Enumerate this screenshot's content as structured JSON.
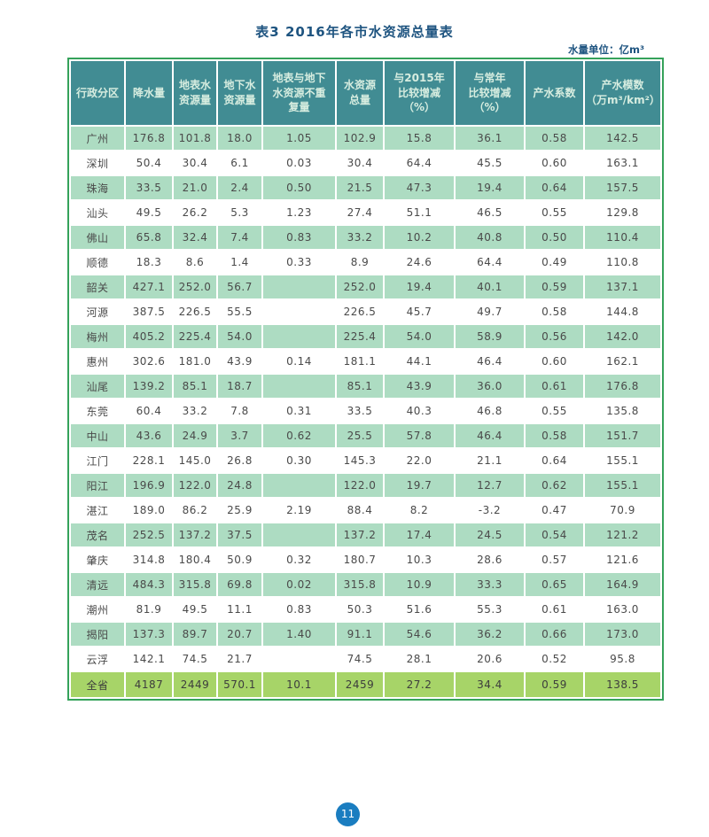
{
  "page": {
    "title": "表3  2016年各市水资源总量表",
    "unit_note": "水量单位：亿m³",
    "page_number": "11"
  },
  "colors": {
    "header_bg": "#418c93",
    "row_green": "#addcc2",
    "row_white": "#ffffff",
    "total_row_bg": "#a7d468",
    "table_border": "#35a25a",
    "title_color": "#1e5480",
    "badge_bg": "#1a7dc0"
  },
  "table": {
    "headers": [
      "行政分区",
      "降水量",
      "地表水\n资源量",
      "地下水\n资源量",
      "地表与地下\n水资源不重\n复量",
      "水资源\n总量",
      "与2015年\n比较增减\n（%）",
      "与常年\n比较增减\n（%）",
      "产水系数",
      "产水模数\n（万m³/km²）"
    ],
    "rows": [
      [
        "广州",
        "176.8",
        "101.8",
        "18.0",
        "1.05",
        "102.9",
        "15.8",
        "36.1",
        "0.58",
        "142.5"
      ],
      [
        "深圳",
        "50.4",
        "30.4",
        "6.1",
        "0.03",
        "30.4",
        "64.4",
        "45.5",
        "0.60",
        "163.1"
      ],
      [
        "珠海",
        "33.5",
        "21.0",
        "2.4",
        "0.50",
        "21.5",
        "47.3",
        "19.4",
        "0.64",
        "157.5"
      ],
      [
        "汕头",
        "49.5",
        "26.2",
        "5.3",
        "1.23",
        "27.4",
        "51.1",
        "46.5",
        "0.55",
        "129.8"
      ],
      [
        "佛山",
        "65.8",
        "32.4",
        "7.4",
        "0.83",
        "33.2",
        "10.2",
        "40.8",
        "0.50",
        "110.4"
      ],
      [
        "顺德",
        "18.3",
        "8.6",
        "1.4",
        "0.33",
        "8.9",
        "24.6",
        "64.4",
        "0.49",
        "110.8"
      ],
      [
        "韶关",
        "427.1",
        "252.0",
        "56.7",
        "",
        "252.0",
        "19.4",
        "40.1",
        "0.59",
        "137.1"
      ],
      [
        "河源",
        "387.5",
        "226.5",
        "55.5",
        "",
        "226.5",
        "45.7",
        "49.7",
        "0.58",
        "144.8"
      ],
      [
        "梅州",
        "405.2",
        "225.4",
        "54.0",
        "",
        "225.4",
        "54.0",
        "58.9",
        "0.56",
        "142.0"
      ],
      [
        "惠州",
        "302.6",
        "181.0",
        "43.9",
        "0.14",
        "181.1",
        "44.1",
        "46.4",
        "0.60",
        "162.1"
      ],
      [
        "汕尾",
        "139.2",
        "85.1",
        "18.7",
        "",
        "85.1",
        "43.9",
        "36.0",
        "0.61",
        "176.8"
      ],
      [
        "东莞",
        "60.4",
        "33.2",
        "7.8",
        "0.31",
        "33.5",
        "40.3",
        "46.8",
        "0.55",
        "135.8"
      ],
      [
        "中山",
        "43.6",
        "24.9",
        "3.7",
        "0.62",
        "25.5",
        "57.8",
        "46.4",
        "0.58",
        "151.7"
      ],
      [
        "江门",
        "228.1",
        "145.0",
        "26.8",
        "0.30",
        "145.3",
        "22.0",
        "21.1",
        "0.64",
        "155.1"
      ],
      [
        "阳江",
        "196.9",
        "122.0",
        "24.8",
        "",
        "122.0",
        "19.7",
        "12.7",
        "0.62",
        "155.1"
      ],
      [
        "湛江",
        "189.0",
        "86.2",
        "25.9",
        "2.19",
        "88.4",
        "8.2",
        "-3.2",
        "0.47",
        "70.9"
      ],
      [
        "茂名",
        "252.5",
        "137.2",
        "37.5",
        "",
        "137.2",
        "17.4",
        "24.5",
        "0.54",
        "121.2"
      ],
      [
        "肇庆",
        "314.8",
        "180.4",
        "50.9",
        "0.32",
        "180.7",
        "10.3",
        "28.6",
        "0.57",
        "121.6"
      ],
      [
        "清远",
        "484.3",
        "315.8",
        "69.8",
        "0.02",
        "315.8",
        "10.9",
        "33.3",
        "0.65",
        "164.9"
      ],
      [
        "潮州",
        "81.9",
        "49.5",
        "11.1",
        "0.83",
        "50.3",
        "51.6",
        "55.3",
        "0.61",
        "163.0"
      ],
      [
        "揭阳",
        "137.3",
        "89.7",
        "20.7",
        "1.40",
        "91.1",
        "54.6",
        "36.2",
        "0.66",
        "173.0"
      ],
      [
        "云浮",
        "142.1",
        "74.5",
        "21.7",
        "",
        "74.5",
        "28.1",
        "20.6",
        "0.52",
        "95.8"
      ]
    ],
    "total_row": [
      "全省",
      "4187",
      "2449",
      "570.1",
      "10.1",
      "2459",
      "27.2",
      "34.4",
      "0.59",
      "138.5"
    ]
  }
}
